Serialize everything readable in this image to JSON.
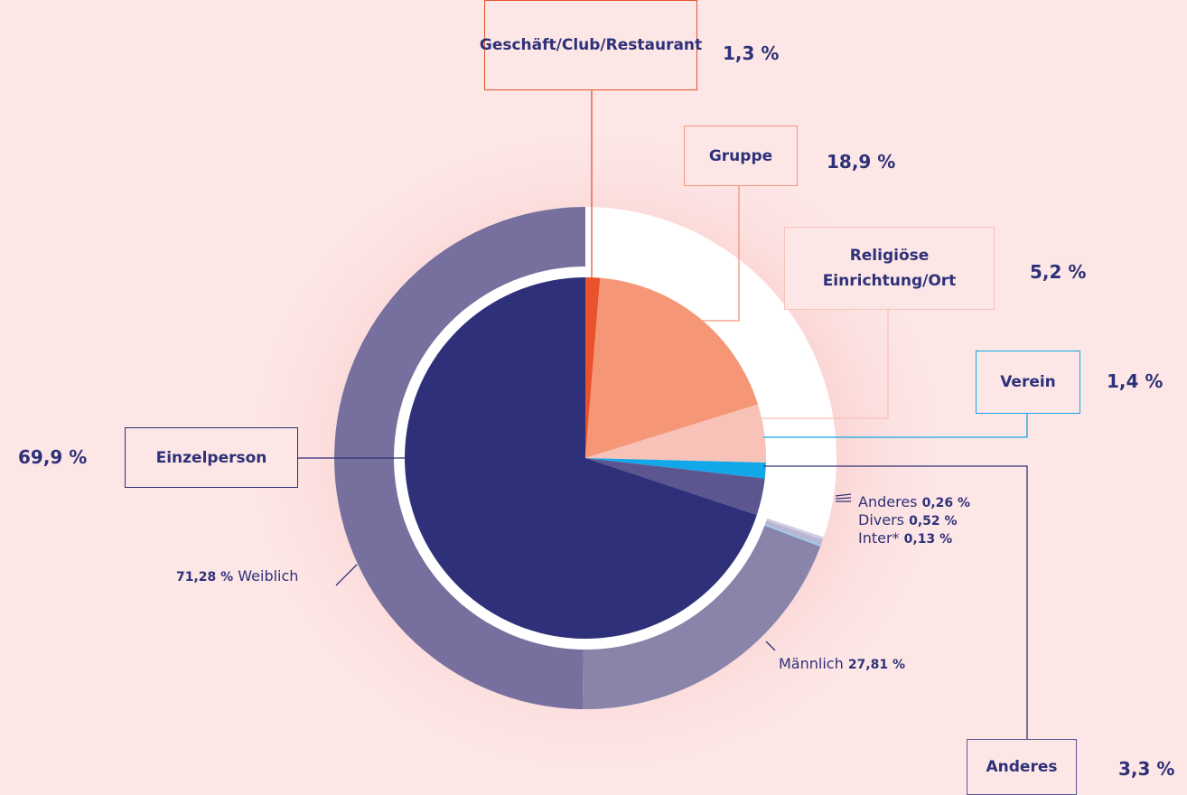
{
  "chart_data": {
    "type": "nested-pie",
    "inner": {
      "categories": [
        "Geschäft/Club/Restaurant",
        "Gruppe",
        "Religiöse Einrichtung/Ort",
        "Verein",
        "Anderes",
        "Einzelperson"
      ],
      "values": [
        1.3,
        18.9,
        5.2,
        1.4,
        3.3,
        69.9
      ],
      "value_labels": [
        "1,3 %",
        "18,9 %",
        "5,2 %",
        "1,4 %",
        "3,3 %",
        "69,9 %"
      ],
      "colors": [
        "#e8532b",
        "#f59677",
        "#f8c2b8",
        "#12a7e8",
        "#5b5690",
        "#2e3179"
      ]
    },
    "outer": {
      "parent": "Einzelperson",
      "categories": [
        "Anderes",
        "Divers",
        "Inter*",
        "Männlich",
        "Weiblich"
      ],
      "values": [
        0.26,
        0.52,
        0.13,
        27.81,
        71.28
      ],
      "value_labels": [
        "0,26 %",
        "0,52 %",
        "0,13 %",
        "27,81 %",
        "71,28 %"
      ],
      "colors": [
        "#cfcce2",
        "#b9b5d2",
        "#8fd0ee",
        "#8a84aa",
        "#77709e"
      ]
    }
  }
}
